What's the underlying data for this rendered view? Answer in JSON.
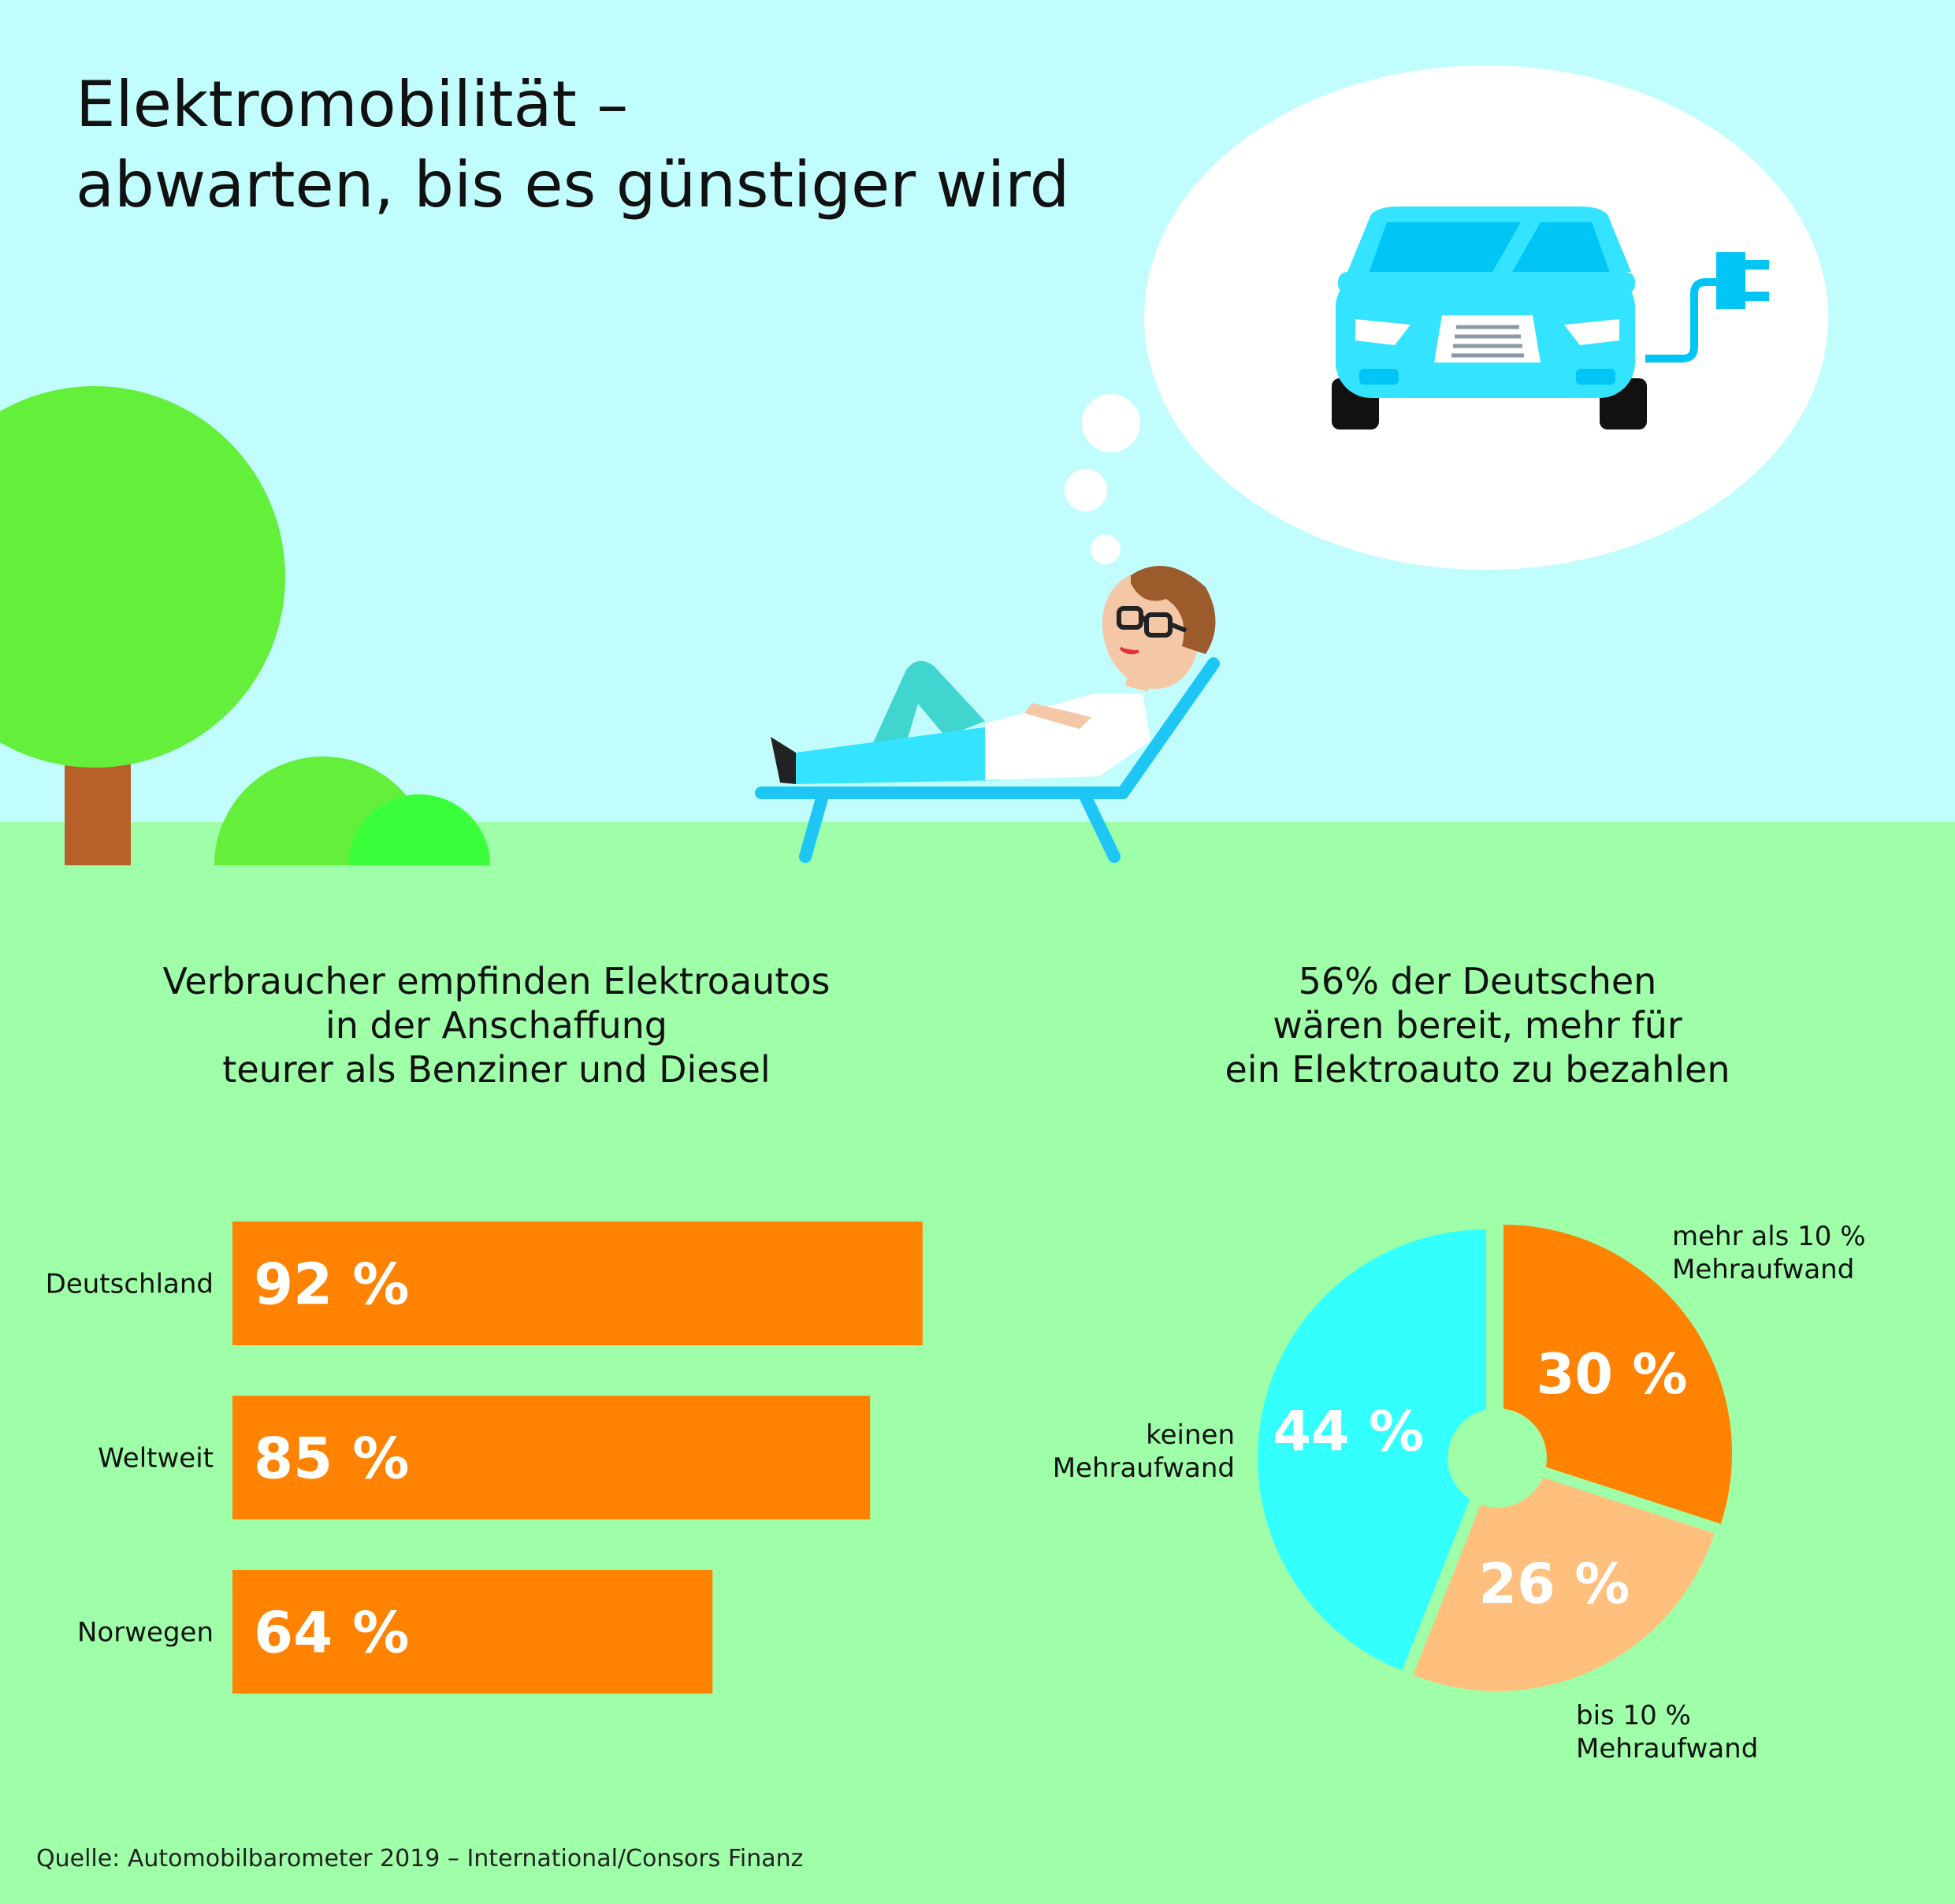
{
  "title": {
    "line1": "Elektromobilität –",
    "line2": "abwarten, bis es günstiger wird"
  },
  "illustration": {
    "thought_icon": "electric-car-with-plug-icon",
    "person": "man-relaxing-on-sun-lounger",
    "tree": "tree-icon",
    "bushes": "bush-icon"
  },
  "colors": {
    "sky": "#c2fdfd",
    "ground": "#9effa8",
    "bar": "#ff8300",
    "pie_orange": "#ff8300",
    "pie_peach": "#ffc07e",
    "pie_cyan": "#33ffff",
    "bar_text": "#ffffff"
  },
  "left_panel": {
    "heading": [
      "Verbraucher empfinden Elektroautos",
      "in der Anschaffung",
      "teurer als Benziner und Diesel"
    ]
  },
  "right_panel": {
    "heading": [
      "56% der Deutschen",
      "wären bereit, mehr für",
      "ein Elektroauto zu bezahlen"
    ]
  },
  "chart_data": [
    {
      "type": "bar",
      "orientation": "horizontal",
      "categories": [
        "Deutschland",
        "Weltweit",
        "Norwegen"
      ],
      "values": [
        92,
        85,
        64
      ],
      "value_labels": [
        "92 %",
        "85 %",
        "64 %"
      ],
      "unit": "%",
      "xlim": [
        0,
        100
      ],
      "grid": false
    },
    {
      "type": "pie",
      "donut": true,
      "slices": [
        {
          "label": [
            "mehr als 10 %",
            "Mehraufwand"
          ],
          "value": 30,
          "value_label": "30 %",
          "color": "#ff8300"
        },
        {
          "label": [
            "bis 10 %",
            "Mehraufwand"
          ],
          "value": 26,
          "value_label": "26 %",
          "color": "#ffc07e"
        },
        {
          "label": [
            "keinen",
            "Mehraufwand"
          ],
          "value": 44,
          "value_label": "44 %",
          "color": "#33ffff"
        }
      ]
    }
  ],
  "source": "Quelle: Automobilbarometer 2019 – International/Consors Finanz"
}
